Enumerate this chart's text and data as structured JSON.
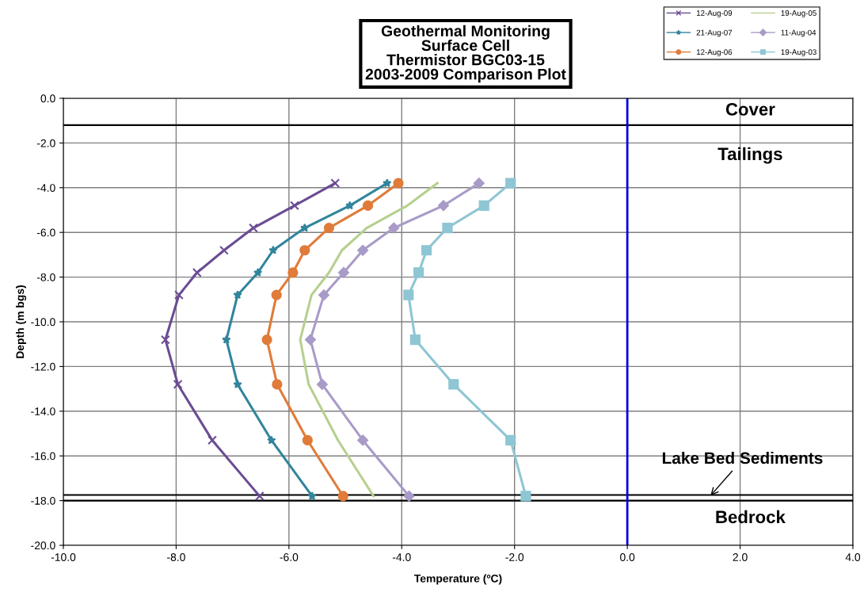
{
  "chart_data": {
    "type": "line",
    "title": "Geothermal Monitoring\nSurface Cell\nThermistor BGC03-15\n2003-2009 Comparison Plot",
    "xlabel": "Temperature (ºC)",
    "ylabel": "Depth (m bgs)",
    "xlim": [
      -10,
      4
    ],
    "ylim": [
      -20,
      0
    ],
    "xticks": [
      {
        "value": -10,
        "label": "-10.0"
      },
      {
        "value": -8,
        "label": "-8.0"
      },
      {
        "value": -6,
        "label": "-6.0"
      },
      {
        "value": -4,
        "label": "-4.0"
      },
      {
        "value": -2,
        "label": "-2.0"
      },
      {
        "value": 0,
        "label": "0.0"
      },
      {
        "value": 2,
        "label": "2.0"
      },
      {
        "value": 4,
        "label": "4.0"
      }
    ],
    "yticks": [
      {
        "value": 0,
        "label": "0.0"
      },
      {
        "value": -2,
        "label": "-2.0"
      },
      {
        "value": -4,
        "label": "-4.0"
      },
      {
        "value": -6,
        "label": "-6.0"
      },
      {
        "value": -8,
        "label": "-8.0"
      },
      {
        "value": -10,
        "label": "-10.0"
      },
      {
        "value": -12,
        "label": "-12.0"
      },
      {
        "value": -14,
        "label": "-14.0"
      },
      {
        "value": -16,
        "label": "-16.0"
      },
      {
        "value": -18,
        "label": "-18.0"
      },
      {
        "value": -20,
        "label": "-20.0"
      }
    ],
    "grid": true,
    "legend": "top right",
    "series": [
      {
        "name": "12-Aug-09",
        "color": "#6a4c93",
        "marker": "cross",
        "x": [
          -5.18,
          -5.9,
          -6.63,
          -7.15,
          -7.63,
          -7.95,
          -8.19,
          -7.97,
          -7.36,
          -6.52
        ],
        "values": [
          -3.8,
          -4.8,
          -5.8,
          -6.8,
          -7.8,
          -8.8,
          -10.8,
          -12.8,
          -15.3,
          -17.8
        ]
      },
      {
        "name": "21-Aug-07",
        "color": "#31859c",
        "marker": "star",
        "x": [
          -4.26,
          -4.92,
          -5.72,
          -6.28,
          -6.55,
          -6.91,
          -7.11,
          -6.91,
          -6.31,
          -5.59
        ],
        "values": [
          -3.8,
          -4.8,
          -5.8,
          -6.8,
          -7.8,
          -8.8,
          -10.8,
          -12.8,
          -15.3,
          -17.8
        ]
      },
      {
        "name": "12-Aug-06",
        "color": "#e07b39",
        "marker": "circle",
        "x": [
          -4.06,
          -4.6,
          -5.29,
          -5.72,
          -5.93,
          -6.22,
          -6.39,
          -6.21,
          -5.67,
          -5.04
        ],
        "values": [
          -3.8,
          -4.8,
          -5.8,
          -6.8,
          -7.8,
          -8.8,
          -10.8,
          -12.8,
          -15.3,
          -17.8
        ]
      },
      {
        "name": "19-Aug-05",
        "color": "#b5d08e",
        "marker": "none",
        "x": [
          -3.37,
          -3.9,
          -4.62,
          -5.06,
          -5.29,
          -5.6,
          -5.8,
          -5.65,
          -5.13,
          -4.5
        ],
        "values": [
          -3.8,
          -4.8,
          -5.8,
          -6.8,
          -7.8,
          -8.8,
          -10.8,
          -12.8,
          -15.3,
          -17.8
        ]
      },
      {
        "name": "11-Aug-04",
        "color": "#a99bc8",
        "marker": "diamond",
        "x": [
          -2.63,
          -3.26,
          -4.14,
          -4.69,
          -5.03,
          -5.38,
          -5.62,
          -5.41,
          -4.69,
          -3.87
        ],
        "values": [
          -3.8,
          -4.8,
          -5.8,
          -6.8,
          -7.8,
          -8.8,
          -10.8,
          -12.8,
          -15.3,
          -17.8
        ]
      },
      {
        "name": "19-Aug-03",
        "color": "#8ec6d4",
        "marker": "square",
        "x": [
          -2.07,
          -2.54,
          -3.19,
          -3.56,
          -3.7,
          -3.88,
          -3.76,
          -3.08,
          -2.07,
          -1.8
        ],
        "values": [
          -3.8,
          -4.8,
          -5.8,
          -6.8,
          -7.8,
          -8.8,
          -10.8,
          -12.8,
          -15.3,
          -17.8
        ]
      }
    ],
    "ref_lines": [
      {
        "axis": "y",
        "value": -1.2,
        "color": "#000000"
      },
      {
        "axis": "y",
        "value": -17.75,
        "color": "#000000"
      },
      {
        "axis": "y",
        "value": -18.0,
        "color": "#000000"
      },
      {
        "axis": "x",
        "value": 0,
        "color": "#0000dd"
      }
    ],
    "annotations": [
      "Cover",
      "Tailings",
      {
        "text": "Lake Bed Sediments",
        "x": 1.45,
        "y": -17.85
      },
      "Bedrock"
    ]
  }
}
